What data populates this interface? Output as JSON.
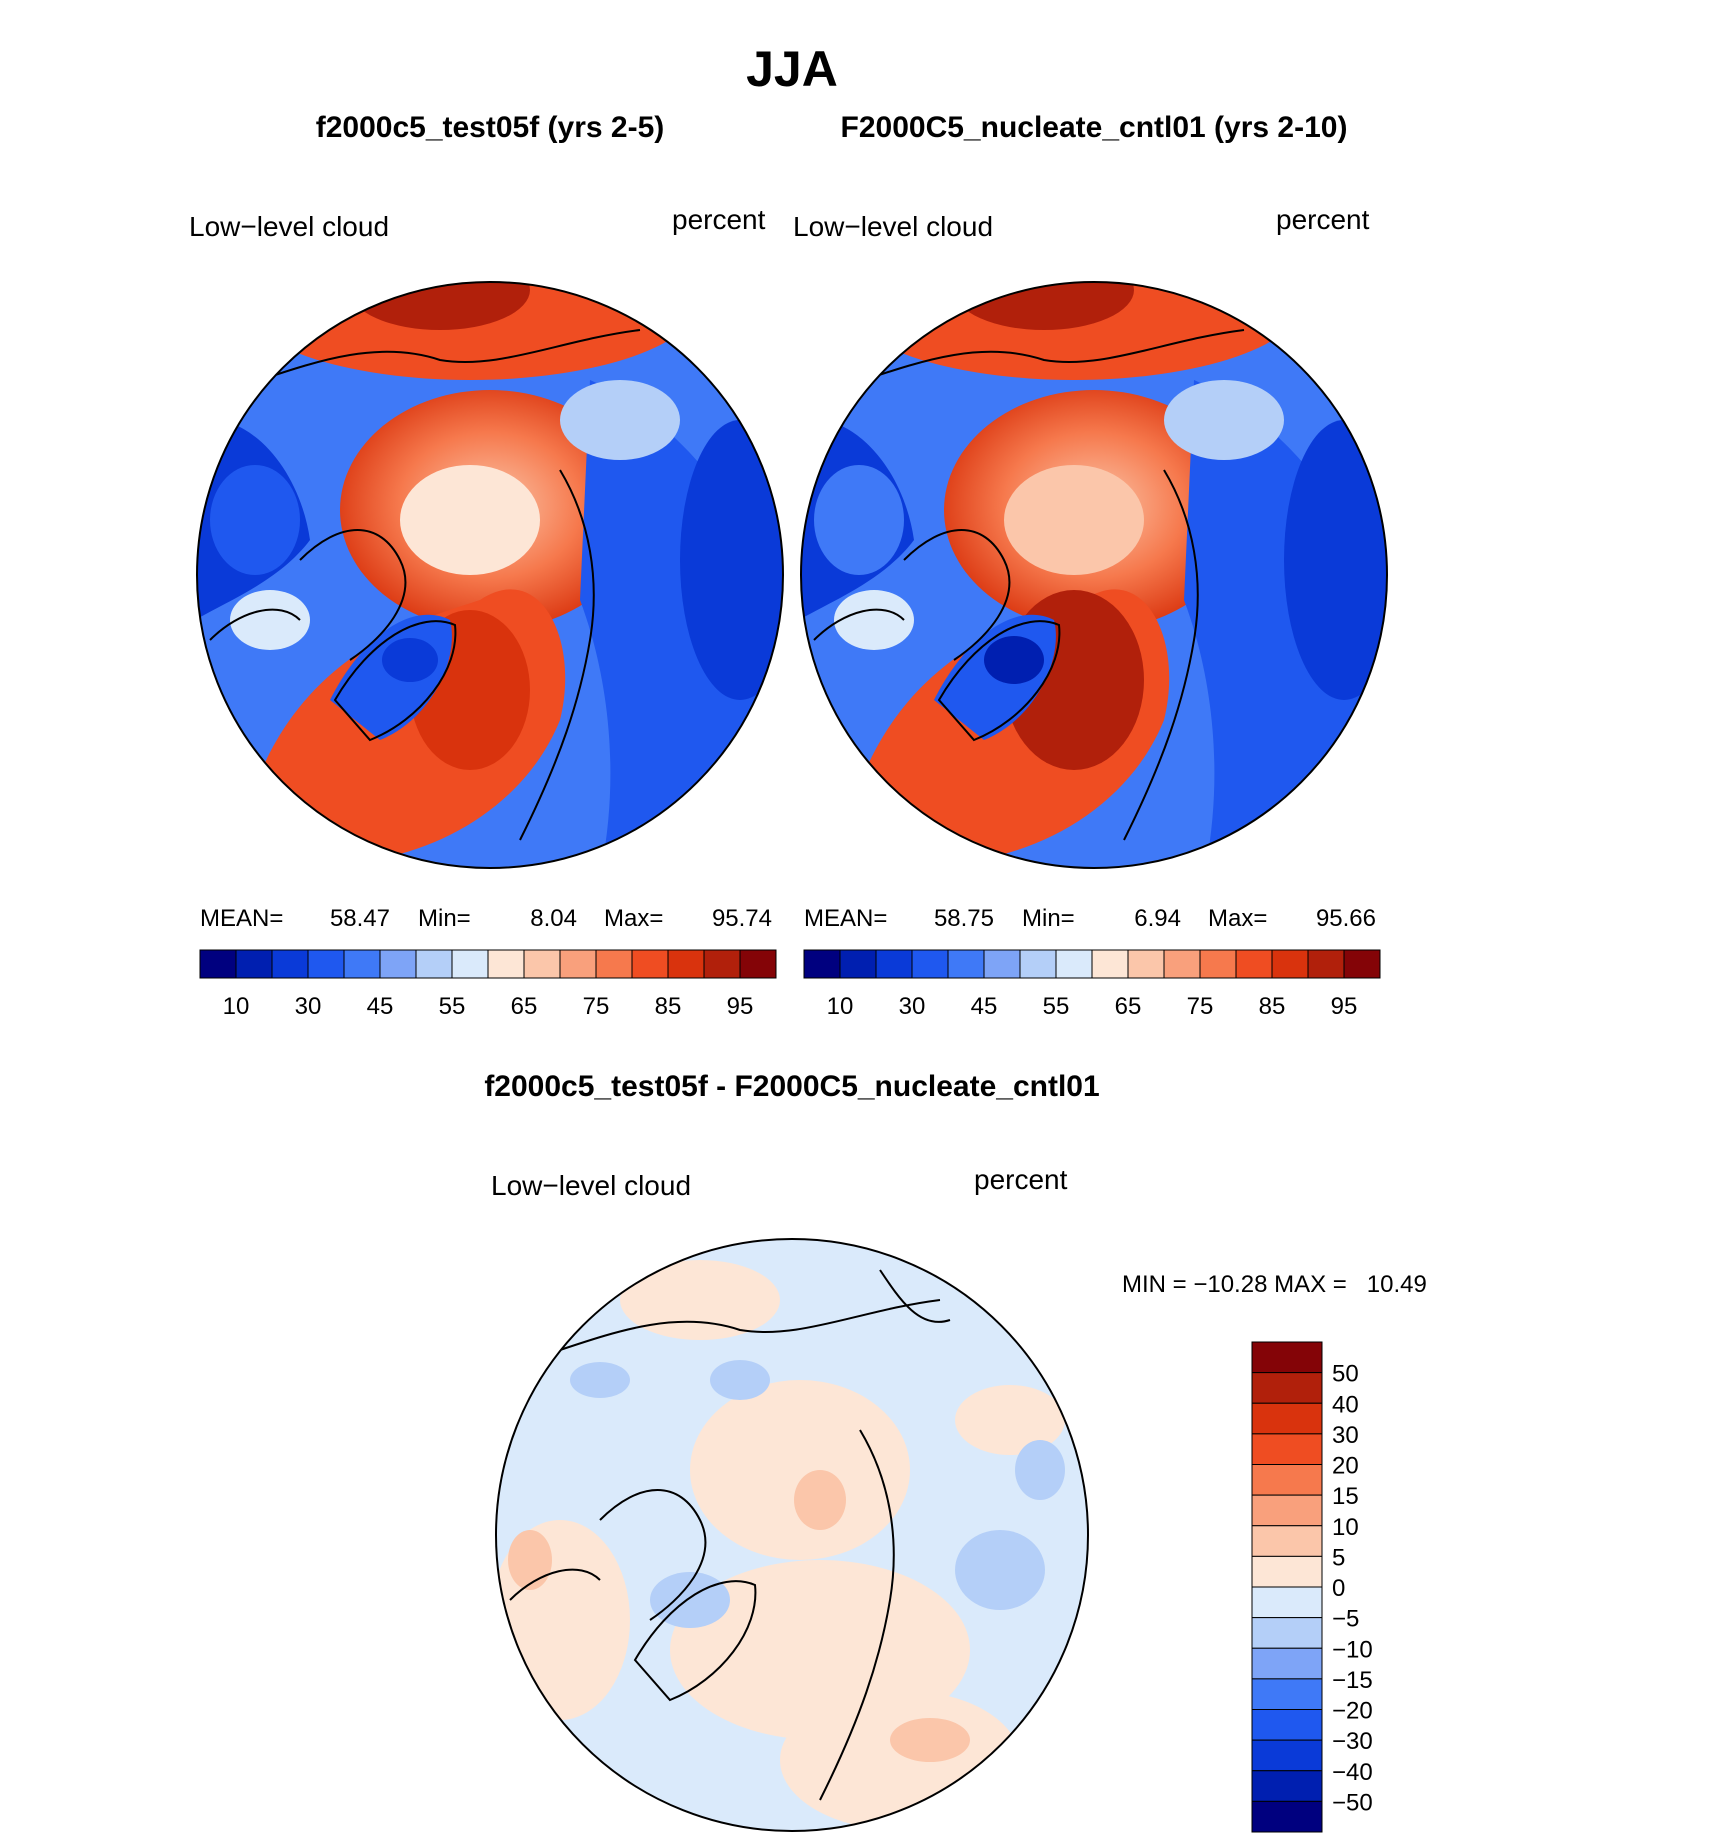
{
  "page": {
    "title": "JJA"
  },
  "panels": [
    {
      "title": "f2000c5_test05f (yrs 2-5)",
      "variable": "Low−level cloud",
      "units": "percent",
      "mean_label": "MEAN=",
      "mean": "58.47",
      "min_label": "Min=",
      "min": "8.04",
      "max_label": "Max=",
      "max": "95.74"
    },
    {
      "title": "F2000C5_nucleate_cntl01 (yrs 2-10)",
      "variable": "Low−level cloud",
      "units": "percent",
      "mean_label": "MEAN=",
      "mean": "58.75",
      "min_label": "Min=",
      "min": "6.94",
      "max_label": "Max=",
      "max": "95.66"
    }
  ],
  "diff": {
    "title": "f2000c5_test05f - F2000C5_nucleate_cntl01",
    "variable": "Low−level cloud",
    "units": "percent",
    "minmax": "MIN = −10.28 MAX =   10.49"
  },
  "chart_data": [
    {
      "type": "heatmap",
      "projection": "north polar stereographic",
      "title": "f2000c5_test05f (yrs 2-5)",
      "variable": "Low-level cloud",
      "units": "percent",
      "mean": 58.47,
      "min": 8.04,
      "max": 95.74,
      "colorbar_levels": [
        10,
        30,
        45,
        55,
        65,
        75,
        85,
        95
      ],
      "colorbar_colors": [
        "#00007f",
        "#001fb0",
        "#0a3ad8",
        "#1f58ef",
        "#3f79f7",
        "#7ea4f7",
        "#b4cff8",
        "#daeafb",
        "#fde6d6",
        "#fbc6aa",
        "#f9a07c",
        "#f6794d",
        "#ef4d22",
        "#d9330d",
        "#b1200b",
        "#840407"
      ]
    },
    {
      "type": "heatmap",
      "projection": "north polar stereographic",
      "title": "F2000C5_nucleate_cntl01 (yrs 2-10)",
      "variable": "Low-level cloud",
      "units": "percent",
      "mean": 58.75,
      "min": 6.94,
      "max": 95.66,
      "colorbar_levels": [
        10,
        30,
        45,
        55,
        65,
        75,
        85,
        95
      ],
      "colorbar_colors": [
        "#00007f",
        "#001fb0",
        "#0a3ad8",
        "#1f58ef",
        "#3f79f7",
        "#7ea4f7",
        "#b4cff8",
        "#daeafb",
        "#fde6d6",
        "#fbc6aa",
        "#f9a07c",
        "#f6794d",
        "#ef4d22",
        "#d9330d",
        "#b1200b",
        "#840407"
      ]
    },
    {
      "type": "heatmap",
      "projection": "north polar stereographic",
      "title": "f2000c5_test05f - F2000C5_nucleate_cntl01",
      "variable": "Low-level cloud",
      "units": "percent",
      "min": -10.28,
      "max": 10.49,
      "colorbar_levels": [
        50,
        40,
        30,
        20,
        15,
        10,
        5,
        0,
        -5,
        -10,
        -15,
        -20,
        -30,
        -40,
        -50
      ],
      "colorbar_colors": [
        "#840407",
        "#b1200b",
        "#d9330d",
        "#ef4d22",
        "#f6794d",
        "#f9a07c",
        "#fbc6aa",
        "#fde6d6",
        "#daeafb",
        "#b4cff8",
        "#7ea4f7",
        "#3f79f7",
        "#1f58ef",
        "#0a3ad8",
        "#001fb0",
        "#00007f"
      ]
    }
  ]
}
